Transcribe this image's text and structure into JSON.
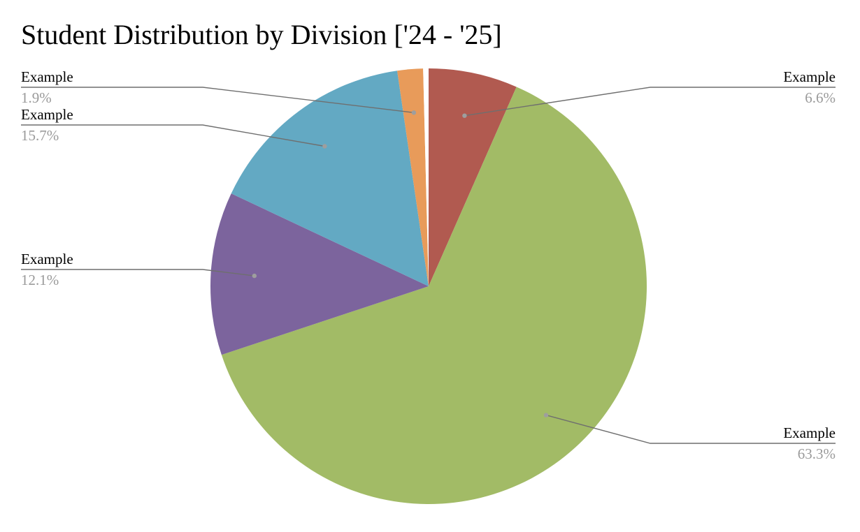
{
  "chart_data": {
    "type": "pie",
    "title": "Student Distribution by Division ['24 - '25]",
    "slices": [
      {
        "label": "Example",
        "value": 6.6,
        "value_label": "6.6%",
        "color": "#b15a50"
      },
      {
        "label": "Example",
        "value": 63.3,
        "value_label": "63.3%",
        "color": "#a2bb66"
      },
      {
        "label": "Example",
        "value": 12.1,
        "value_label": "12.1%",
        "color": "#7c649d"
      },
      {
        "label": "Example",
        "value": 15.7,
        "value_label": "15.7%",
        "color": "#63a9c3"
      },
      {
        "label": "Example",
        "value": 1.9,
        "value_label": "1.9%",
        "color": "#e89b5a"
      },
      {
        "label": "",
        "value": 0.4,
        "value_label": "",
        "color": "#ffffff"
      }
    ],
    "start_angle": "top",
    "direction": "clockwise",
    "legend": "none",
    "data_labels": "outside-with-leader-lines"
  }
}
